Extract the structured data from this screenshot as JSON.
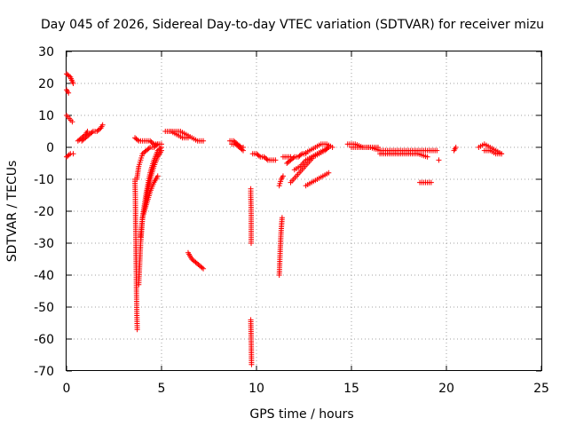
{
  "chart_data": {
    "type": "scatter",
    "title": "Day 045 of 2026, Sidereal Day-to-day VTEC variation (SDTVAR) for receiver mizu",
    "xlabel": "GPS time / hours",
    "ylabel": "SDTVAR / TECUs",
    "xlim": [
      0,
      25
    ],
    "ylim": [
      -70,
      30
    ],
    "xticks": [
      0,
      5,
      10,
      15,
      20,
      25
    ],
    "yticks": [
      -70,
      -60,
      -50,
      -40,
      -30,
      -20,
      -10,
      0,
      10,
      20,
      30
    ],
    "grid": true,
    "marker": "+",
    "colors": {
      "points": "#ff0000"
    },
    "arcs": [
      {
        "name": "a1",
        "x": [
          0.0,
          0.2,
          0.35
        ],
        "y": [
          23,
          22,
          20
        ]
      },
      {
        "name": "a2",
        "x": [
          0.0,
          0.1
        ],
        "y": [
          18,
          17
        ]
      },
      {
        "name": "a3",
        "x": [
          0.0,
          0.15,
          0.3
        ],
        "y": [
          10,
          9,
          8
        ]
      },
      {
        "name": "a4",
        "x": [
          0.0,
          0.2,
          0.35
        ],
        "y": [
          -3,
          -2,
          -2
        ]
      },
      {
        "name": "a5",
        "x": [
          0.6,
          0.8,
          1.0,
          1.1
        ],
        "y": [
          2,
          3,
          4,
          5
        ]
      },
      {
        "name": "a6",
        "x": [
          0.8,
          1.0,
          1.2,
          1.4,
          1.6,
          1.8,
          1.9
        ],
        "y": [
          2,
          3,
          4,
          5,
          5,
          6,
          7
        ]
      },
      {
        "name": "a7",
        "x": [
          3.6,
          3.8,
          4.0,
          4.2,
          4.4,
          4.6,
          4.8,
          5.0
        ],
        "y": [
          3,
          2,
          2,
          2,
          2,
          1,
          1,
          1
        ]
      },
      {
        "name": "a8",
        "x": [
          3.6,
          3.62,
          3.64,
          3.66,
          3.68,
          3.7,
          3.72
        ],
        "y": [
          -10,
          -15,
          -25,
          -35,
          -45,
          -52,
          -57
        ]
      },
      {
        "name": "a9",
        "x": [
          3.7,
          3.8,
          3.9,
          4.0,
          4.2,
          4.4,
          4.6,
          4.8
        ],
        "y": [
          -10,
          -6,
          -4,
          -2,
          -1,
          0,
          0,
          1
        ]
      },
      {
        "name": "a10",
        "x": [
          3.8,
          3.9,
          4.0,
          4.2,
          4.4,
          4.6,
          4.8,
          5.0
        ],
        "y": [
          -43,
          -30,
          -22,
          -14,
          -8,
          -4,
          -1,
          0
        ]
      },
      {
        "name": "a11",
        "x": [
          3.9,
          4.0,
          4.2,
          4.4,
          4.6,
          4.8,
          5.0
        ],
        "y": [
          -28,
          -22,
          -16,
          -10,
          -6,
          -3,
          -1
        ]
      },
      {
        "name": "a12",
        "x": [
          4.0,
          4.2,
          4.4,
          4.6,
          4.8
        ],
        "y": [
          -22,
          -18,
          -14,
          -11,
          -9
        ]
      },
      {
        "name": "a13",
        "x": [
          5.2,
          5.5,
          5.8,
          6.1,
          6.4
        ],
        "y": [
          5,
          5,
          4,
          3,
          3
        ]
      },
      {
        "name": "a14",
        "x": [
          5.4,
          5.7,
          6.0,
          6.3,
          6.6,
          6.9,
          7.2
        ],
        "y": [
          5,
          5,
          5,
          4,
          3,
          2,
          2
        ]
      },
      {
        "name": "a15",
        "x": [
          6.4,
          6.6,
          6.8,
          7.0,
          7.2
        ],
        "y": [
          -33,
          -35,
          -36,
          -37,
          -38
        ]
      },
      {
        "name": "a16",
        "x": [
          8.6,
          8.8,
          9.0,
          9.2,
          9.3
        ],
        "y": [
          2,
          2,
          1,
          0,
          0
        ]
      },
      {
        "name": "a17",
        "x": [
          8.7,
          8.9,
          9.1,
          9.3
        ],
        "y": [
          1,
          1,
          0,
          -1
        ]
      },
      {
        "name": "a18",
        "x": [
          9.7,
          9.7,
          9.72,
          9.72,
          9.72
        ],
        "y": [
          -13,
          -15,
          -20,
          -25,
          -30
        ]
      },
      {
        "name": "a19",
        "x": [
          9.7,
          9.72,
          9.74
        ],
        "y": [
          -54,
          -60,
          -68
        ]
      },
      {
        "name": "a20",
        "x": [
          9.8,
          10.0,
          10.2,
          10.4,
          10.6,
          10.8,
          11.0
        ],
        "y": [
          -2,
          -2,
          -3,
          -3,
          -4,
          -4,
          -4
        ]
      },
      {
        "name": "a21",
        "x": [
          11.2,
          11.25,
          11.3,
          11.35
        ],
        "y": [
          -40,
          -32,
          -26,
          -22
        ]
      },
      {
        "name": "a22",
        "x": [
          11.2,
          11.3,
          11.4
        ],
        "y": [
          -12,
          -10,
          -9
        ]
      },
      {
        "name": "a23",
        "x": [
          11.4,
          11.6,
          11.8
        ],
        "y": [
          -3,
          -3,
          -3
        ]
      },
      {
        "name": "a24",
        "x": [
          11.6,
          11.8,
          12.0,
          12.2,
          12.4,
          12.6
        ],
        "y": [
          -5,
          -4,
          -3,
          -3,
          -2,
          -2
        ]
      },
      {
        "name": "a25",
        "x": [
          11.8,
          12.1,
          12.4,
          12.7,
          13.0,
          13.3,
          13.6,
          13.8
        ],
        "y": [
          -11,
          -9,
          -7,
          -5,
          -3,
          -2,
          -1,
          0
        ]
      },
      {
        "name": "a26",
        "x": [
          12.0,
          12.3,
          12.6,
          12.9,
          13.2,
          13.5,
          13.8
        ],
        "y": [
          -7,
          -6,
          -4,
          -3,
          -2,
          -1,
          0
        ]
      },
      {
        "name": "a27",
        "x": [
          12.5,
          12.8,
          13.1,
          13.4,
          13.7,
          14.0
        ],
        "y": [
          -2,
          -1,
          0,
          1,
          1,
          0
        ]
      },
      {
        "name": "a28",
        "x": [
          12.6,
          12.9,
          13.2,
          13.5,
          13.8
        ],
        "y": [
          -12,
          -11,
          -10,
          -9,
          -8
        ]
      },
      {
        "name": "a29",
        "x": [
          14.8,
          15.2,
          15.6,
          16.0,
          16.4
        ],
        "y": [
          1,
          1,
          0,
          0,
          0
        ]
      },
      {
        "name": "a30",
        "x": [
          15.0,
          15.5,
          16.0,
          16.5,
          17.0,
          17.5,
          18.0,
          18.5,
          19.0,
          19.5
        ],
        "y": [
          0,
          0,
          0,
          -1,
          -1,
          -1,
          -1,
          -1,
          -1,
          -1
        ]
      },
      {
        "name": "a31",
        "x": [
          16.5,
          17.0,
          17.5,
          18.0,
          18.5,
          19.0
        ],
        "y": [
          -2,
          -2,
          -2,
          -2,
          -2,
          -3
        ]
      },
      {
        "name": "a32",
        "x": [
          18.6,
          18.9,
          19.2
        ],
        "y": [
          -11,
          -11,
          -11
        ]
      },
      {
        "name": "a33",
        "x": [
          19.6
        ],
        "y": [
          -4
        ]
      },
      {
        "name": "a34",
        "x": [
          20.4,
          20.5
        ],
        "y": [
          -1,
          0
        ]
      },
      {
        "name": "a35",
        "x": [
          21.7,
          22.0,
          22.3,
          22.6,
          22.9
        ],
        "y": [
          0,
          1,
          0,
          -1,
          -2
        ]
      },
      {
        "name": "a36",
        "x": [
          22.0,
          22.3,
          22.6,
          22.9
        ],
        "y": [
          -1,
          -1,
          -2,
          -2
        ]
      }
    ]
  }
}
